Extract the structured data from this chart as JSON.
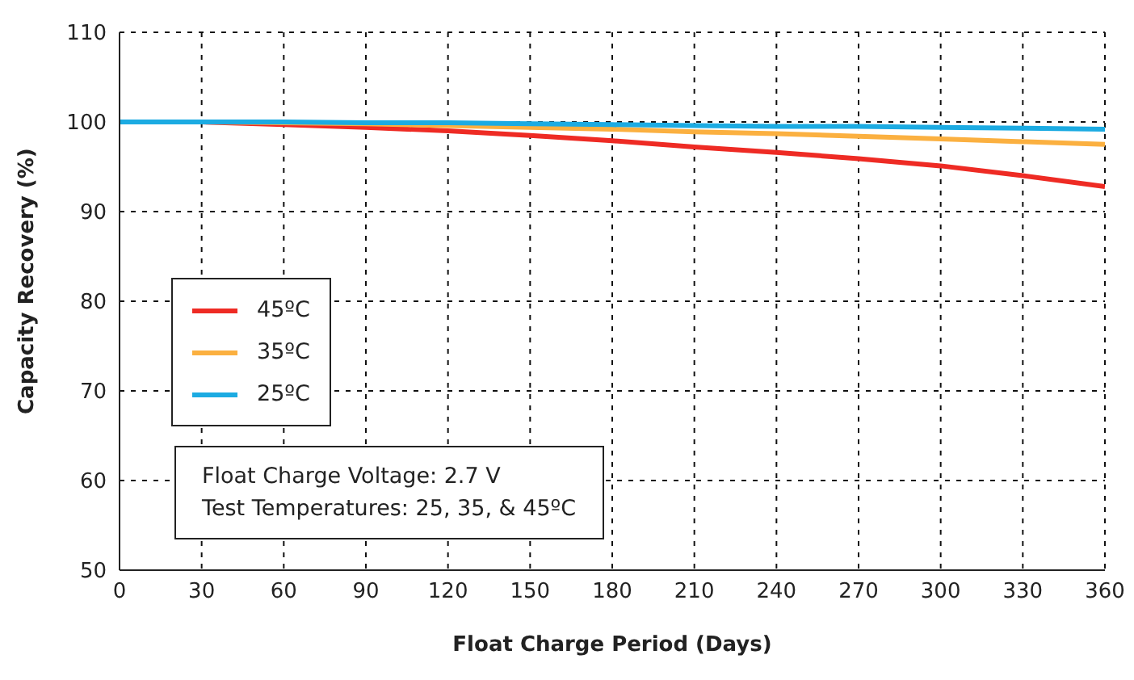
{
  "chart_data": {
    "type": "line",
    "xlabel": "Float Charge Period (Days)",
    "ylabel": "Capacity Recovery (%)",
    "x": [
      0,
      30,
      60,
      90,
      120,
      150,
      180,
      210,
      240,
      270,
      300,
      330,
      360
    ],
    "series": [
      {
        "name": "45ºC",
        "color": "#ee2b24",
        "values": [
          100,
          100,
          99.7,
          99.4,
          99,
          98.5,
          97.9,
          97.2,
          96.6,
          95.9,
          95.1,
          94,
          92.8
        ]
      },
      {
        "name": "35ºC",
        "color": "#fbb040",
        "values": [
          100,
          100,
          99.9,
          99.8,
          99.6,
          99.4,
          99.2,
          98.9,
          98.7,
          98.4,
          98.1,
          97.8,
          97.5
        ]
      },
      {
        "name": "25ºC",
        "color": "#1cabe2",
        "values": [
          100,
          100,
          100,
          99.9,
          99.9,
          99.8,
          99.7,
          99.6,
          99.5,
          99.5,
          99.4,
          99.3,
          99.2
        ]
      }
    ],
    "xlim": [
      0,
      360
    ],
    "xticks": [
      0,
      30,
      60,
      90,
      120,
      150,
      180,
      210,
      240,
      270,
      300,
      330,
      360
    ],
    "ylim": [
      50,
      110
    ],
    "yticks": [
      50,
      60,
      70,
      80,
      90,
      100,
      110
    ],
    "grid": true,
    "legend": "left",
    "marker": "none",
    "line_style": "solid",
    "annotations": [
      "Float Charge Voltage: 2.7 V",
      "Test Temperatures: 25, 35, & 45ºC"
    ]
  }
}
